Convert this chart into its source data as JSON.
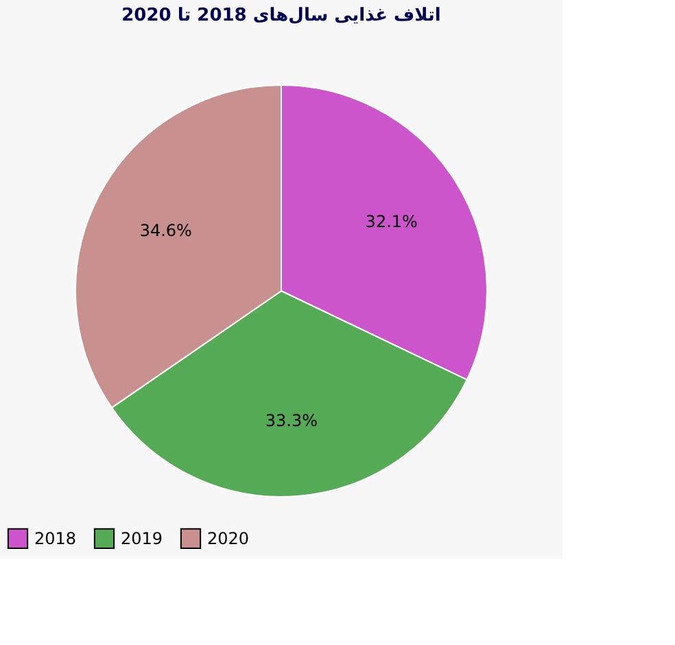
{
  "chart_data": {
    "type": "pie",
    "title": "اتلاف غذایی سال‌های 2018  تا 2020",
    "categories": [
      "2018",
      "2019",
      "2020"
    ],
    "values": [
      32.1,
      33.3,
      34.6
    ],
    "value_labels": [
      "32.1%",
      "33.3%",
      "34.6%"
    ],
    "colors": [
      "#cc55cc",
      "#55aa55",
      "#c99090"
    ],
    "legend": "bottom left"
  }
}
